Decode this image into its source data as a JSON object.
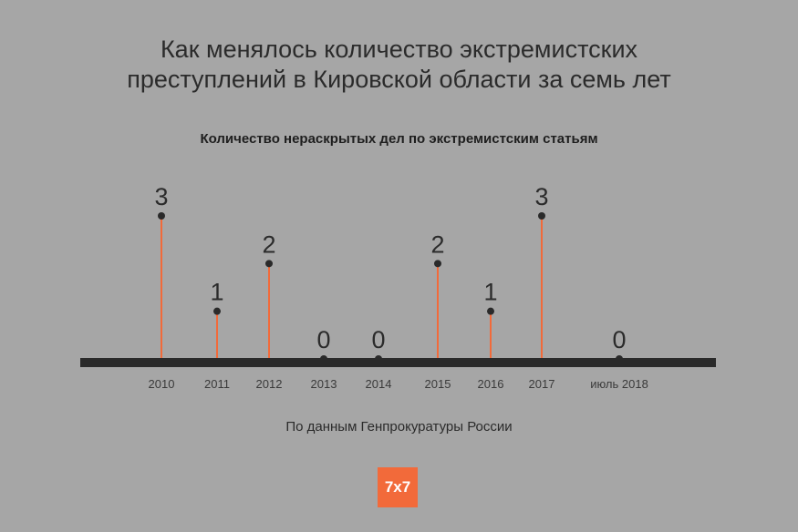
{
  "title": {
    "line1": "Как менялось количество экстремистских",
    "line2": "преступлений в Кировской области за семь лет"
  },
  "source": "По данным Генпрокуратуры России",
  "logo_text": "7x7",
  "colors": {
    "background": "#a6a6a6",
    "stem": "#f26a3a",
    "axis": "#2a2a2a",
    "dot": "#2a2a2a"
  },
  "chart_data": {
    "type": "lollipop",
    "title": "Количество нераскрытых дел по экстремистским статьям",
    "categories": [
      "2010",
      "2011",
      "2012",
      "2013",
      "2014",
      "2015",
      "2016",
      "2017",
      "июль 2018"
    ],
    "values": [
      3,
      1,
      2,
      0,
      0,
      2,
      1,
      3,
      0
    ],
    "data_labels": [
      "3",
      "1",
      "2",
      "0",
      "0",
      "2",
      "1",
      "3",
      "0"
    ],
    "ylim": [
      0,
      3
    ],
    "grid": false,
    "legend": "none"
  }
}
